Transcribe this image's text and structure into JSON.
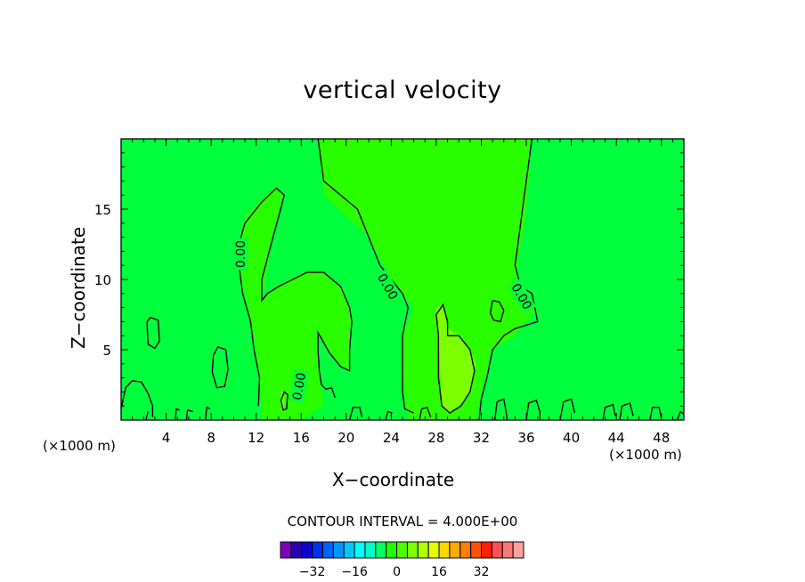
{
  "chart_data": {
    "type": "heatmap",
    "title": "vertical velocity",
    "xlabel": "X−coordinate",
    "ylabel": "Z−coordinate",
    "x_units": "(×1000 m)",
    "xlim": [
      0,
      50
    ],
    "ylim": [
      0,
      20
    ],
    "x_ticks": [
      4,
      8,
      12,
      16,
      20,
      24,
      28,
      32,
      36,
      40,
      44,
      48
    ],
    "y_ticks": [
      5,
      10,
      15
    ],
    "contour_interval_text": "CONTOUR INTERVAL = 4.000E+00",
    "contour_labels": [
      "0.00",
      "0.00",
      "0.00",
      "0.00"
    ],
    "colorbar": {
      "tick_values": [
        -32,
        -16,
        0,
        16,
        32
      ],
      "tick_labels": [
        "−32",
        "−16",
        "0",
        "16",
        "32"
      ],
      "colors": [
        "#7f00bf",
        "#2a00b0",
        "#1000d0",
        "#0030f0",
        "#0064ff",
        "#0096ff",
        "#00c8ff",
        "#00ffff",
        "#00ffc8",
        "#00ff64",
        "#1eff00",
        "#4bff00",
        "#7cff00",
        "#b0ff00",
        "#e6ff00",
        "#ffd700",
        "#ffaa00",
        "#ff7f00",
        "#ff5000",
        "#ff2000",
        "#ff5050",
        "#ff7878",
        "#ffa0a0"
      ]
    },
    "background_color": "#00ff3c",
    "regions": [
      {
        "level": "0 to 4",
        "color": "#2aff00",
        "polygon": [
          [
            17.5,
            20
          ],
          [
            36.5,
            20
          ],
          [
            36,
            15
          ],
          [
            35,
            10
          ],
          [
            37,
            8
          ],
          [
            35,
            6
          ],
          [
            33,
            5
          ],
          [
            32,
            2
          ],
          [
            31.5,
            0
          ],
          [
            25.5,
            0
          ],
          [
            25,
            3
          ],
          [
            25,
            6
          ],
          [
            26,
            8
          ],
          [
            24,
            10
          ],
          [
            22,
            13
          ],
          [
            18,
            16
          ]
        ]
      },
      {
        "level": "0 to 4",
        "color": "#2aff00",
        "polygon": [
          [
            10.3,
            12
          ],
          [
            11,
            14.5
          ],
          [
            13.5,
            16.5
          ],
          [
            14.5,
            16
          ],
          [
            13.2,
            12
          ],
          [
            12.5,
            8.5
          ],
          [
            14,
            9.5
          ],
          [
            16.5,
            10.5
          ],
          [
            18,
            10.5
          ],
          [
            20,
            9
          ],
          [
            20.5,
            7
          ],
          [
            20.3,
            3.4
          ],
          [
            19,
            4.4
          ],
          [
            17.5,
            6
          ],
          [
            17.7,
            3
          ],
          [
            18,
            1
          ],
          [
            16,
            0
          ],
          [
            12.5,
            0
          ],
          [
            12.3,
            3
          ],
          [
            11.8,
            6
          ],
          [
            11,
            9
          ]
        ]
      },
      {
        "level": "4 to 8",
        "color": "#7cff00",
        "polygon": [
          [
            28.2,
            6
          ],
          [
            28,
            8
          ],
          [
            28.6,
            8.2
          ],
          [
            29,
            6.5
          ],
          [
            30,
            6
          ],
          [
            31,
            5
          ],
          [
            31.5,
            4
          ],
          [
            31,
            2
          ],
          [
            30,
            1
          ],
          [
            29,
            0.5
          ],
          [
            28.5,
            1
          ]
        ]
      },
      {
        "level": "4 to 8",
        "color": "#7cff00",
        "polygon": [
          [
            14.2,
            2
          ],
          [
            14.5,
            2
          ],
          [
            14.5,
            0.6
          ],
          [
            14.3,
            0.6
          ]
        ]
      }
    ],
    "contour_lines": [
      [
        [
          17.5,
          20
        ],
        [
          18,
          17
        ],
        [
          21,
          15
        ],
        [
          22,
          13
        ],
        [
          23,
          11
        ],
        [
          24,
          10
        ],
        [
          25,
          9
        ],
        [
          25.5,
          8
        ],
        [
          25,
          6
        ],
        [
          25,
          4
        ],
        [
          25,
          2
        ],
        [
          25.2,
          0.8
        ],
        [
          26,
          0.5
        ]
      ],
      [
        [
          36.5,
          20
        ],
        [
          36,
          17
        ],
        [
          35.5,
          14
        ],
        [
          35,
          11
        ],
        [
          35.5,
          9.5
        ],
        [
          36.5,
          9
        ],
        [
          37,
          7
        ],
        [
          35,
          6.5
        ],
        [
          34,
          6
        ],
        [
          33,
          5
        ],
        [
          32.5,
          3
        ],
        [
          32,
          1.5
        ],
        [
          31.8,
          0
        ]
      ],
      [
        [
          10.3,
          12
        ],
        [
          11,
          14
        ],
        [
          12.5,
          15.5
        ],
        [
          13.8,
          16.5
        ],
        [
          14.5,
          16
        ],
        [
          14,
          14.5
        ],
        [
          13.5,
          13
        ],
        [
          12.5,
          10
        ],
        [
          12.5,
          8.5
        ],
        [
          13,
          9
        ],
        [
          14,
          9.5
        ],
        [
          16.5,
          10.5
        ],
        [
          18,
          10.5
        ],
        [
          19.5,
          9.5
        ],
        [
          20.3,
          8
        ],
        [
          20.5,
          7
        ],
        [
          20.3,
          5
        ],
        [
          20.3,
          3.5
        ],
        [
          19.5,
          3.8
        ],
        [
          18.5,
          4.8
        ],
        [
          17.8,
          5.8
        ],
        [
          17.5,
          6.2
        ],
        [
          17.5,
          5
        ],
        [
          17.6,
          3.5
        ],
        [
          17.8,
          2.5
        ],
        [
          18.2,
          2.2
        ],
        [
          18.7,
          2.3
        ],
        [
          19,
          1.6
        ]
      ],
      [
        [
          10.3,
          12
        ],
        [
          10.8,
          9
        ],
        [
          11.5,
          7
        ],
        [
          11.8,
          5
        ],
        [
          12.3,
          3
        ],
        [
          12.2,
          1
        ]
      ],
      [
        [
          28.2,
          6
        ],
        [
          28,
          7.5
        ],
        [
          28.6,
          8.2
        ],
        [
          29,
          7
        ],
        [
          29,
          6
        ],
        [
          30,
          6
        ],
        [
          31,
          5
        ],
        [
          31.4,
          3.5
        ],
        [
          31,
          2
        ],
        [
          30.2,
          1
        ],
        [
          29.2,
          0.5
        ],
        [
          28.5,
          1
        ],
        [
          28.2,
          3
        ],
        [
          28.2,
          6
        ]
      ],
      [
        [
          2.3,
          7
        ],
        [
          2.6,
          7.3
        ],
        [
          3.3,
          7.1
        ],
        [
          3.4,
          5.6
        ],
        [
          3,
          5.1
        ],
        [
          2.4,
          5.4
        ],
        [
          2.3,
          7
        ]
      ],
      [
        [
          8.2,
          4.6
        ],
        [
          8.6,
          5.2
        ],
        [
          9.3,
          5
        ],
        [
          9.5,
          3.6
        ],
        [
          9.2,
          2.4
        ],
        [
          8.5,
          2.3
        ],
        [
          8.1,
          3.4
        ],
        [
          8.2,
          4.6
        ]
      ],
      [
        [
          33,
          8.5
        ],
        [
          33.6,
          8.4
        ],
        [
          34,
          7.8
        ],
        [
          33.7,
          7
        ],
        [
          33.1,
          7.1
        ],
        [
          32.8,
          7.6
        ],
        [
          33,
          8.5
        ]
      ],
      [
        [
          14.2,
          1.4
        ],
        [
          14.5,
          2
        ],
        [
          14.8,
          1.8
        ],
        [
          14.7,
          0.8
        ],
        [
          14.4,
          0.7
        ],
        [
          14.2,
          1.4
        ]
      ],
      [
        [
          0,
          0.8
        ],
        [
          0.4,
          2.3
        ],
        [
          1,
          2.8
        ],
        [
          1.8,
          2.7
        ],
        [
          2.4,
          1.9
        ],
        [
          2.8,
          1
        ],
        [
          2.8,
          0.2
        ]
      ],
      [
        [
          26.5,
          0
        ],
        [
          26.7,
          0.8
        ],
        [
          27.2,
          0.9
        ],
        [
          27.5,
          0.2
        ]
      ],
      [
        [
          33.2,
          0
        ],
        [
          33.4,
          1.3
        ],
        [
          34,
          1.5
        ],
        [
          34.2,
          0.6
        ],
        [
          34.3,
          0
        ]
      ],
      [
        [
          36,
          0
        ],
        [
          36.2,
          1.2
        ],
        [
          36.9,
          1.4
        ],
        [
          37.2,
          0.6
        ],
        [
          37.2,
          0
        ]
      ],
      [
        [
          39,
          0
        ],
        [
          39.3,
          1.3
        ],
        [
          40,
          1.5
        ],
        [
          40.3,
          0.5
        ]
      ],
      [
        [
          42.8,
          0
        ],
        [
          43,
          0.9
        ],
        [
          43.7,
          1.1
        ],
        [
          43.9,
          0.3
        ]
      ],
      [
        [
          44.3,
          0
        ],
        [
          44.5,
          1
        ],
        [
          45.2,
          1.2
        ],
        [
          45.5,
          0.3
        ]
      ],
      [
        [
          47,
          0
        ],
        [
          47.2,
          0.9
        ],
        [
          47.8,
          0.9
        ],
        [
          48,
          0.1
        ]
      ],
      [
        [
          49.4,
          0
        ],
        [
          49.7,
          0.6
        ],
        [
          50,
          0.4
        ]
      ],
      [
        [
          20.3,
          0
        ],
        [
          20.6,
          0.9
        ],
        [
          21.2,
          0.9
        ],
        [
          21.4,
          0.2
        ]
      ],
      [
        [
          5.8,
          0
        ],
        [
          5.9,
          0.7
        ],
        [
          6.4,
          0.6
        ]
      ],
      [
        [
          4.8,
          0
        ],
        [
          4.9,
          0.8
        ],
        [
          5.2,
          0.7
        ]
      ],
      [
        [
          7.5,
          0
        ],
        [
          7.6,
          0.9
        ],
        [
          7.9,
          0.8
        ]
      ],
      [
        [
          23.5,
          0
        ],
        [
          23.7,
          0.6
        ],
        [
          24.1,
          0.5
        ]
      ],
      [
        [
          2.2,
          0
        ],
        [
          2.4,
          0.6
        ]
      ]
    ],
    "contour_label_positions": [
      [
        10.6,
        11.8
      ],
      [
        23.7,
        9.5
      ],
      [
        35.6,
        8.8
      ],
      [
        15.8,
        2.4
      ]
    ]
  }
}
